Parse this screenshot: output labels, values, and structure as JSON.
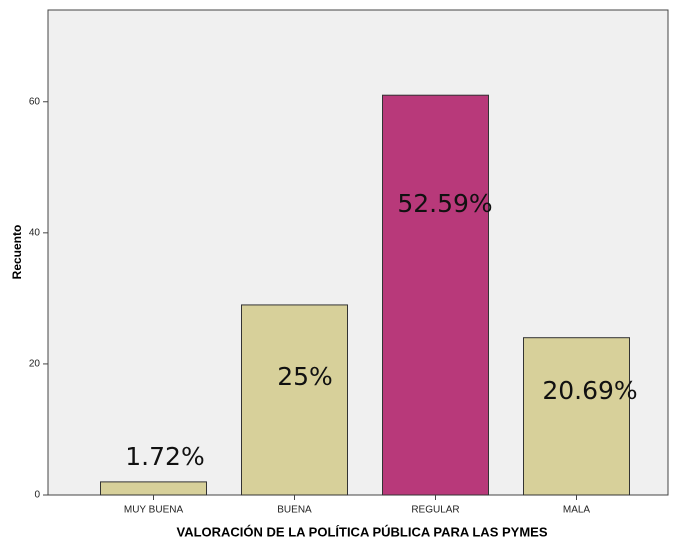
{
  "chart_data": {
    "type": "bar",
    "categories": [
      "MUY BUENA",
      "BUENA",
      "REGULAR",
      "MALA"
    ],
    "values": [
      2,
      29,
      61,
      24
    ],
    "colors": [
      "#d7d09a",
      "#d7d09a",
      "#b8397a",
      "#d7d09a"
    ],
    "ylim": [
      0,
      74
    ],
    "yticks": [
      0,
      20,
      40,
      60
    ],
    "y_label": "Recuento",
    "x_label": "VALORACIÓN DE LA POLÍTICA PÚBLICA PARA LAS PYMES",
    "annotations": [
      "1.72%",
      "25%",
      "52.59%",
      "20.69%"
    ]
  }
}
